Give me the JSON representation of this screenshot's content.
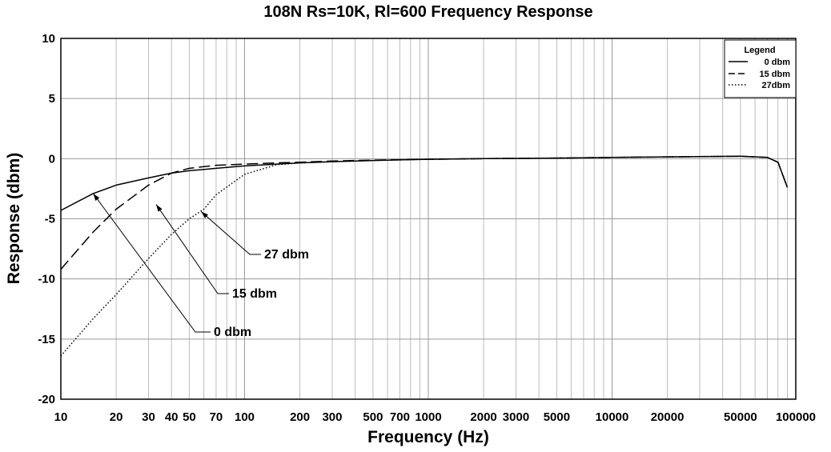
{
  "chart_data": {
    "type": "line",
    "title": "108N Rs=10K, Rl=600 Frequency Response",
    "xlabel": "Frequency (Hz)",
    "ylabel": "Response (dbm)",
    "xscale": "log",
    "xlim": [
      10,
      100000
    ],
    "ylim": [
      -20,
      10
    ],
    "grid": true,
    "x_ticks": [
      10,
      20,
      30,
      40,
      50,
      70,
      100,
      200,
      300,
      500,
      700,
      1000,
      2000,
      3000,
      5000,
      10000,
      20000,
      50000,
      100000
    ],
    "x_tick_labels": [
      "10",
      "20",
      "30",
      "40",
      "50",
      "70",
      "100",
      "200",
      "300",
      "500",
      "700",
      "1000",
      "2000",
      "3000",
      "5000",
      "10000",
      "20000",
      "50000",
      "100000"
    ],
    "y_ticks": [
      10,
      5,
      0,
      -5,
      -10,
      -15,
      -20
    ],
    "y_tick_labels": [
      "10",
      "5",
      "0",
      "-5",
      "-10",
      "-15",
      "-20"
    ],
    "legend": {
      "title": "Legend",
      "position": "top-right",
      "entries": [
        "0 dbm",
        "15 dbm",
        "27dbm"
      ]
    },
    "series": [
      {
        "name": "0 dbm",
        "style": "solid",
        "x": [
          10,
          15,
          20,
          30,
          40,
          50,
          70,
          100,
          150,
          200,
          300,
          500,
          1000,
          2000,
          5000,
          10000,
          20000,
          50000,
          70000,
          80000,
          90000
        ],
        "y": [
          -4.3,
          -2.9,
          -2.2,
          -1.6,
          -1.2,
          -1.0,
          -0.8,
          -0.6,
          -0.45,
          -0.35,
          -0.25,
          -0.15,
          -0.05,
          0.0,
          0.05,
          0.1,
          0.15,
          0.2,
          0.1,
          -0.3,
          -2.4
        ]
      },
      {
        "name": "15 dbm",
        "style": "dashed",
        "x": [
          10,
          15,
          20,
          30,
          40,
          50,
          70,
          100,
          150,
          200,
          300,
          500,
          1000,
          2000,
          5000,
          10000,
          20000,
          50000,
          70000,
          80000,
          90000
        ],
        "y": [
          -9.2,
          -6.1,
          -4.2,
          -2.2,
          -1.2,
          -0.8,
          -0.55,
          -0.45,
          -0.35,
          -0.3,
          -0.2,
          -0.12,
          -0.05,
          0.0,
          0.05,
          0.1,
          0.15,
          0.2,
          0.1,
          -0.3,
          -2.4
        ]
      },
      {
        "name": "27dbm",
        "style": "dotted",
        "x": [
          10,
          15,
          20,
          30,
          40,
          50,
          60,
          70,
          100,
          150,
          200,
          300,
          500,
          1000,
          2000,
          5000,
          10000,
          20000,
          50000,
          70000,
          80000,
          90000
        ],
        "y": [
          -16.4,
          -13.3,
          -11.3,
          -8.3,
          -6.3,
          -5.0,
          -4.2,
          -3.0,
          -1.3,
          -0.5,
          -0.35,
          -0.25,
          -0.15,
          -0.05,
          0.0,
          0.05,
          0.1,
          0.15,
          0.2,
          0.1,
          -0.3,
          -2.4
        ]
      }
    ],
    "annotations": [
      {
        "text": "27 dbm",
        "target_x": 58,
        "target_y": -4.4
      },
      {
        "text": "15 dbm",
        "target_x": 33,
        "target_y": -3.8
      },
      {
        "text": "0 dbm",
        "target_x": 15,
        "target_y": -2.9
      }
    ]
  }
}
